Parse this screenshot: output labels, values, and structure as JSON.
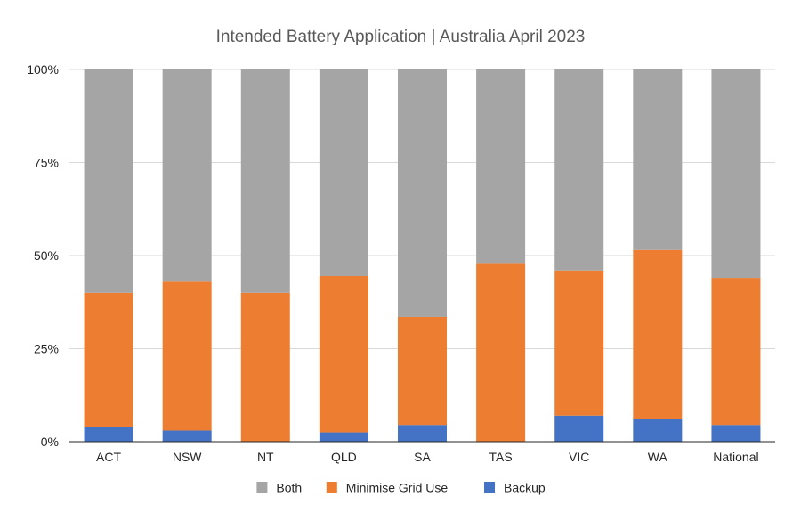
{
  "chart_data": {
    "type": "bar",
    "stacked": true,
    "percent_stacked": true,
    "title": "Intended Battery Application | Australia April 2023",
    "categories": [
      "ACT",
      "NSW",
      "NT",
      "QLD",
      "SA",
      "TAS",
      "VIC",
      "WA",
      "National"
    ],
    "series": [
      {
        "name": "Backup",
        "color": "#4472C4",
        "values": [
          4,
          3,
          0,
          2.5,
          4.5,
          0,
          7,
          6,
          4.5
        ]
      },
      {
        "name": "Minimise Grid Use",
        "color": "#ED7D31",
        "values": [
          36,
          40,
          40,
          42,
          29,
          48,
          39,
          45.5,
          39.5
        ]
      },
      {
        "name": "Both",
        "color": "#A5A5A5",
        "values": [
          60,
          57,
          60,
          55.5,
          66.5,
          52,
          54,
          48.5,
          56
        ]
      }
    ],
    "ylim": [
      0,
      100
    ],
    "yticks": [
      "0%",
      "25%",
      "50%",
      "75%",
      "100%"
    ],
    "ytick_values": [
      0,
      25,
      50,
      75,
      100
    ],
    "grid": true,
    "legend_position": "bottom",
    "legend_order": [
      "Both",
      "Minimise Grid Use",
      "Backup"
    ]
  }
}
